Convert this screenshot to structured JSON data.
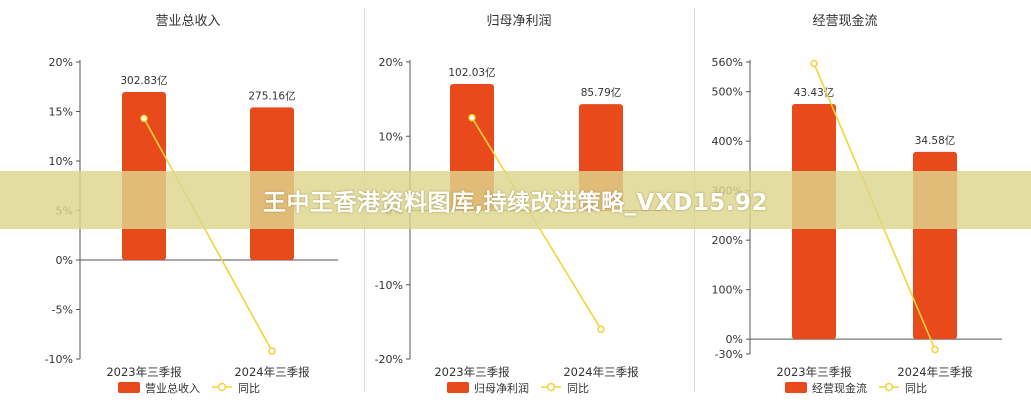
{
  "banner": {
    "text": "王中王香港资料图库,持续改进策略_VXD15.92"
  },
  "colors": {
    "bar": "#e84a1c",
    "line": "#f2d43a",
    "axis": "#555555",
    "grid": "#e6e6e6"
  },
  "chart_data": [
    {
      "type": "bar",
      "title": "营业总收入",
      "categories": [
        "2023年三季报",
        "2024年三季报"
      ],
      "series": [
        {
          "name": "营业总收入",
          "kind": "bar",
          "axis": "none",
          "values": [
            302.83,
            275.16
          ],
          "labels": [
            "302.83亿",
            "275.16亿"
          ]
        },
        {
          "name": "同比",
          "kind": "line",
          "axis": "left",
          "values": [
            14.3,
            -9.2
          ]
        }
      ],
      "y_ticks": [
        "20%",
        "15%",
        "10%",
        "5%",
        "0%",
        "-5%",
        "-10%"
      ],
      "ylim": [
        -10,
        20
      ],
      "grid": false,
      "legend_position": "bottom"
    },
    {
      "type": "bar",
      "title": "归母净利润",
      "categories": [
        "2023年三季报",
        "2024年三季报"
      ],
      "series": [
        {
          "name": "归母净利润",
          "kind": "bar",
          "axis": "none",
          "values": [
            102.03,
            85.79
          ],
          "labels": [
            "102.03亿",
            "85.79亿"
          ]
        },
        {
          "name": "同比",
          "kind": "line",
          "axis": "left",
          "values": [
            12.5,
            -16.0
          ]
        }
      ],
      "y_ticks": [
        "20%",
        "10%",
        "0%",
        "-10%",
        "-20%"
      ],
      "ylim": [
        -20,
        20
      ],
      "grid": false,
      "legend_position": "bottom"
    },
    {
      "type": "bar",
      "title": "经营现金流",
      "categories": [
        "2023年三季报",
        "2024年三季报"
      ],
      "series": [
        {
          "name": "经营现金流",
          "kind": "bar",
          "axis": "none",
          "values": [
            43.43,
            34.58
          ],
          "labels": [
            "43.43亿",
            "34.58亿"
          ]
        },
        {
          "name": "同比",
          "kind": "line",
          "axis": "left",
          "values": [
            557,
            -21
          ]
        }
      ],
      "y_ticks": [
        "560%",
        "500%",
        "400%",
        "300%",
        "200%",
        "100%",
        "0%",
        "-30%"
      ],
      "ylim": [
        -30,
        560
      ],
      "grid": false,
      "legend_position": "bottom"
    }
  ]
}
